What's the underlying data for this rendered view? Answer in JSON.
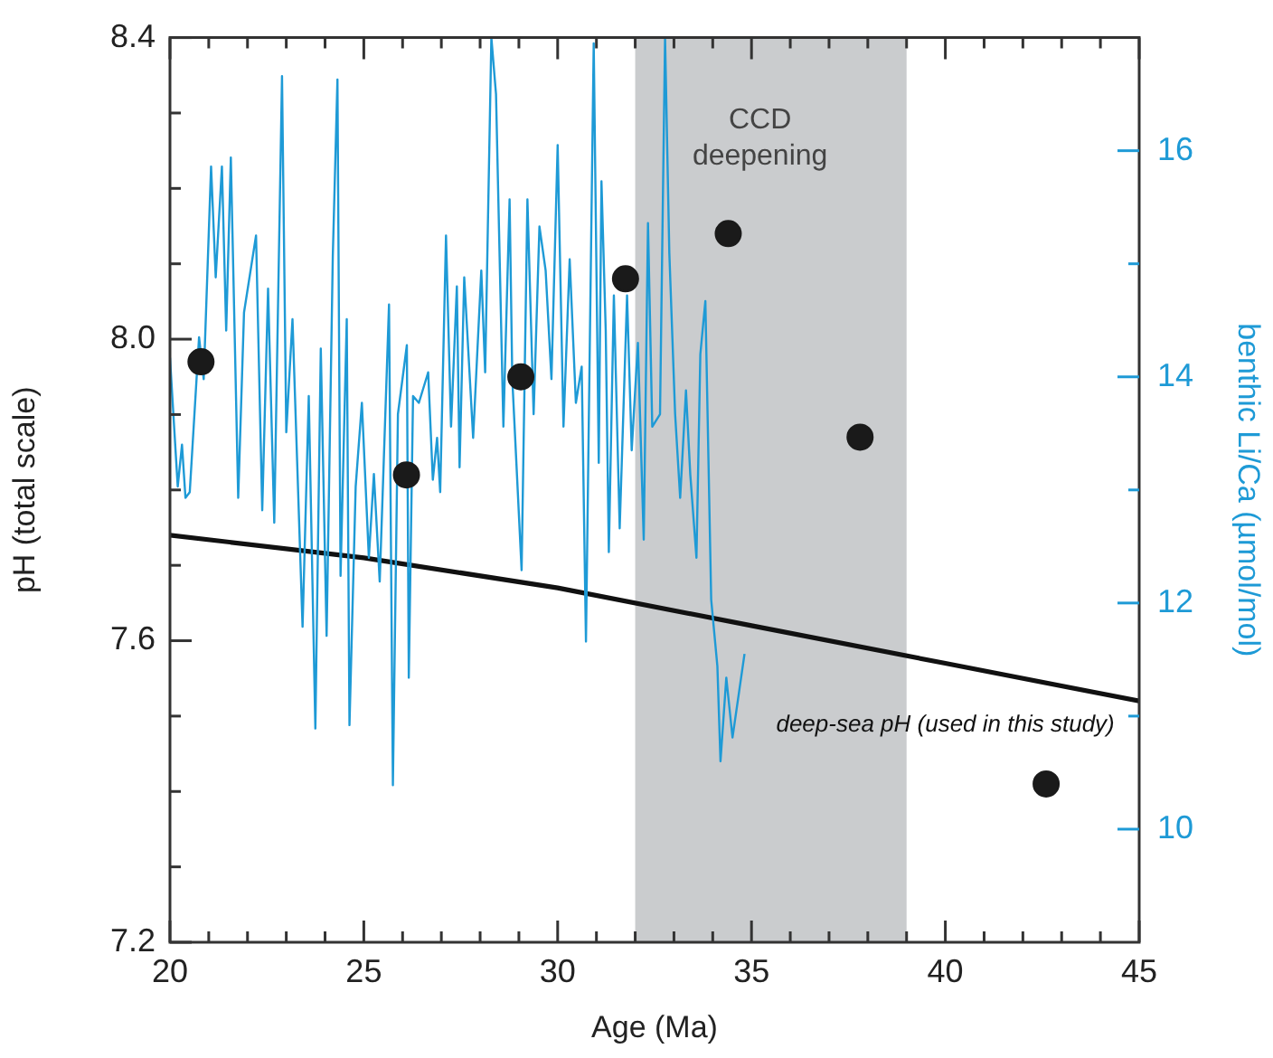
{
  "chart_data": {
    "type": "line",
    "xlabel": "Age (Ma)",
    "ylabel": "pH (total scale)",
    "y2label": "benthic Li/Ca (µmol/mol)",
    "xlim": [
      20,
      45
    ],
    "ylim": [
      7.2,
      8.4
    ],
    "y2lim": [
      9,
      17
    ],
    "xticks": [
      20,
      {
        "value": 21,
        "label": null
      },
      {
        "value": 22,
        "label": null
      },
      {
        "value": 23,
        "label": null
      },
      {
        "value": 24,
        "label": null
      },
      25,
      {
        "value": 26,
        "label": null
      },
      {
        "value": 27,
        "label": null
      },
      {
        "value": 28,
        "label": null
      },
      {
        "value": 29,
        "label": null
      },
      30,
      {
        "value": 31,
        "label": null
      },
      {
        "value": 32,
        "label": null
      },
      {
        "value": 33,
        "label": null
      },
      {
        "value": 34,
        "label": null
      },
      35,
      {
        "value": 36,
        "label": null
      },
      {
        "value": 37,
        "label": null
      },
      {
        "value": 38,
        "label": null
      },
      {
        "value": 39,
        "label": null
      },
      40,
      {
        "value": 41,
        "label": null
      },
      {
        "value": 42,
        "label": null
      },
      {
        "value": 43,
        "label": null
      },
      {
        "value": 44,
        "label": null
      },
      45
    ],
    "yticks": [
      7.2,
      {
        "value": 7.3,
        "label": null
      },
      {
        "value": 7.4,
        "label": null
      },
      {
        "value": 7.5,
        "label": null
      },
      7.6,
      {
        "value": 7.7,
        "label": null
      },
      {
        "value": 7.8,
        "label": null
      },
      {
        "value": 7.9,
        "label": null
      },
      {
        "value": 8.0,
        "label": "8.0"
      },
      {
        "value": 8.1,
        "label": null
      },
      {
        "value": 8.2,
        "label": null
      },
      {
        "value": 8.3,
        "label": null
      },
      8.4
    ],
    "y2ticks": [
      10,
      {
        "value": 11,
        "label": null
      },
      12,
      {
        "value": 13,
        "label": null
      },
      14,
      {
        "value": 15,
        "label": null
      },
      16
    ],
    "grid": false,
    "legend": false,
    "marker": "none",
    "line_style": "solid",
    "bands": [
      {
        "axis": "x",
        "from": 32,
        "to": 39,
        "label": "CCD deepening",
        "color": "#caccce"
      }
    ],
    "annotations": [
      "deep-sea pH (used in this study)"
    ],
    "series": [
      {
        "type": "line",
        "axis": "y2",
        "color": "#1e9ad6",
        "x": [
          20.0,
          20.2,
          20.31,
          20.4,
          20.51,
          20.75,
          20.87,
          21.06,
          21.18,
          21.34,
          21.45,
          21.57,
          21.76,
          21.91,
          22.22,
          22.38,
          22.53,
          22.69,
          22.89,
          23.0,
          23.16,
          23.42,
          23.58,
          23.75,
          23.89,
          24.04,
          24.2,
          24.32,
          24.4,
          24.56,
          24.63,
          24.79,
          24.95,
          25.13,
          25.26,
          25.41,
          25.65,
          25.75,
          25.88,
          26.11,
          26.16,
          26.27,
          26.42,
          26.66,
          26.78,
          26.89,
          26.97,
          27.12,
          27.25,
          27.4,
          27.47,
          27.59,
          27.82,
          28.03,
          28.13,
          28.29,
          28.41,
          28.6,
          28.76,
          28.83,
          29.07,
          29.22,
          29.38,
          29.53,
          29.69,
          29.84,
          30.0,
          30.15,
          30.31,
          30.47,
          30.62,
          30.73,
          30.93,
          31.06,
          31.13,
          31.24,
          31.32,
          31.45,
          31.6,
          31.79,
          31.91,
          32.07,
          32.22,
          32.33,
          32.44,
          32.64,
          32.77,
          32.88,
          33.03,
          33.16,
          33.31,
          33.42,
          33.58,
          33.68,
          33.81,
          33.96,
          34.12,
          34.2,
          34.35,
          34.51,
          34.82
        ],
        "values": [
          14.17,
          13.03,
          13.4,
          12.93,
          12.98,
          14.35,
          13.98,
          15.86,
          14.88,
          15.86,
          14.41,
          15.94,
          12.93,
          14.57,
          15.25,
          12.82,
          14.78,
          12.71,
          16.66,
          13.51,
          14.51,
          11.79,
          13.83,
          10.89,
          14.25,
          11.71,
          15.07,
          16.63,
          12.24,
          14.51,
          10.92,
          13.03,
          13.77,
          12.4,
          13.14,
          12.19,
          14.64,
          10.39,
          13.67,
          14.28,
          11.34,
          13.83,
          13.77,
          14.04,
          13.09,
          13.46,
          12.98,
          15.25,
          13.56,
          14.8,
          13.2,
          14.88,
          13.46,
          14.94,
          14.04,
          17.0,
          16.5,
          13.56,
          15.57,
          13.98,
          12.29,
          15.57,
          13.67,
          15.33,
          14.94,
          13.98,
          16.05,
          13.56,
          15.04,
          13.77,
          14.09,
          11.66,
          16.95,
          13.24,
          15.73,
          14.41,
          12.45,
          14.72,
          12.66,
          14.72,
          13.35,
          14.3,
          12.56,
          15.36,
          13.56,
          13.67,
          17.0,
          15.1,
          13.67,
          12.93,
          13.88,
          13.14,
          12.4,
          14.2,
          14.67,
          12.03,
          11.44,
          10.6,
          11.34,
          10.81,
          11.55
        ]
      },
      {
        "type": "line",
        "color": "#111111",
        "x": [
          20,
          25,
          30,
          35,
          40,
          45
        ],
        "values": [
          7.74,
          7.71,
          7.67,
          7.62,
          7.57,
          7.52
        ]
      },
      {
        "type": "scatter",
        "marker": "circle",
        "color": "#1a1a1a",
        "x": [
          20.8,
          26.1,
          29.05,
          31.75,
          34.4,
          37.8,
          42.6
        ],
        "values": [
          7.97,
          7.82,
          7.95,
          8.08,
          8.14,
          7.87,
          7.41
        ]
      }
    ]
  }
}
